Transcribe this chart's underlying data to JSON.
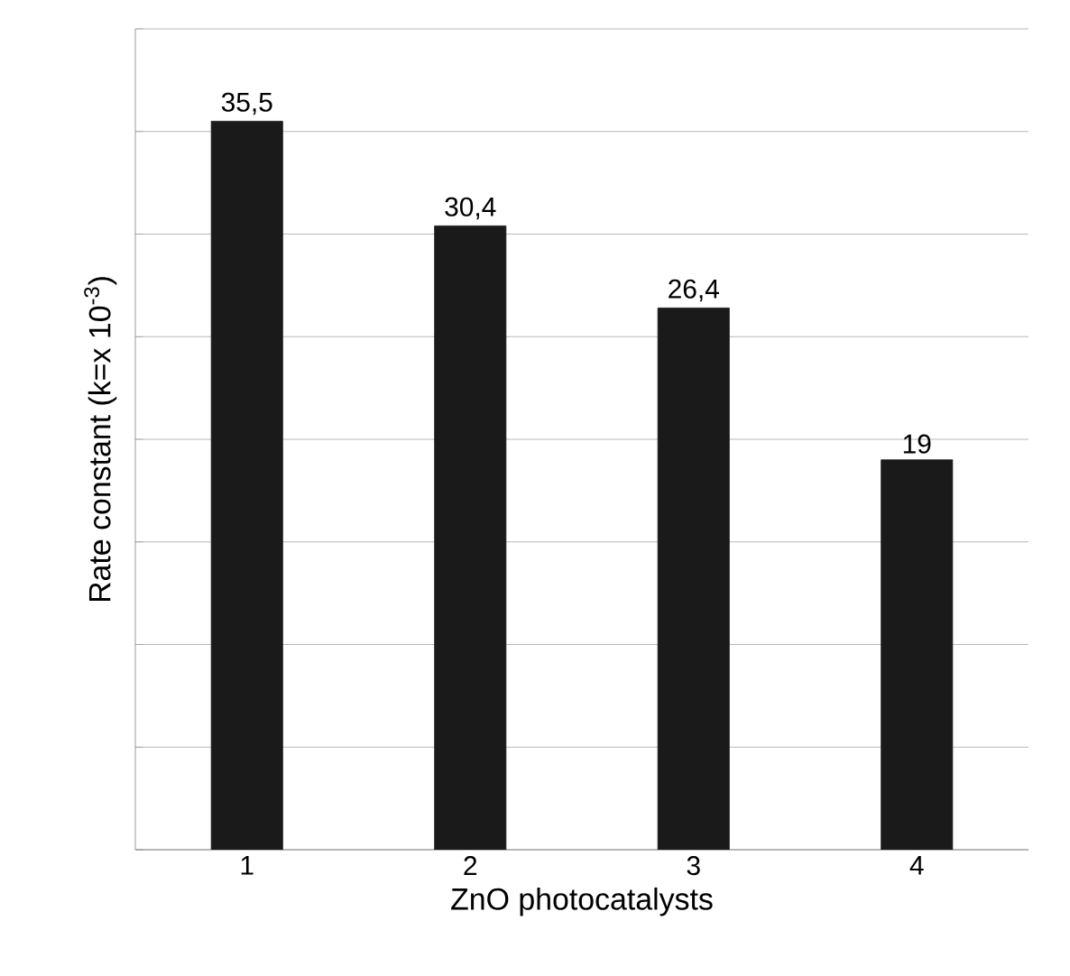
{
  "chart_data": {
    "type": "bar",
    "xlabel": "ZnO photocatalysts",
    "ylabel": "Rate constant (k=x 10$^{-3}$)",
    "categories": [
      "1",
      "2",
      "3",
      "4"
    ],
    "values": [
      35.5,
      30.4,
      26.4,
      19
    ],
    "value_labels": [
      "35,5",
      "30,4",
      "26,4",
      "19"
    ],
    "color": "#1a1a1a",
    "ylim": [
      0,
      40
    ],
    "yticks": [
      {
        "value": 0,
        "label": null
      },
      {
        "value": 5,
        "label": null
      },
      {
        "value": 10,
        "label": null
      },
      {
        "value": 15,
        "label": null
      },
      {
        "value": 20,
        "label": null
      },
      {
        "value": 25,
        "label": null
      },
      {
        "value": 30,
        "label": null
      },
      {
        "value": 35,
        "label": null
      },
      {
        "value": 40,
        "label": null
      }
    ],
    "grid": "y"
  }
}
